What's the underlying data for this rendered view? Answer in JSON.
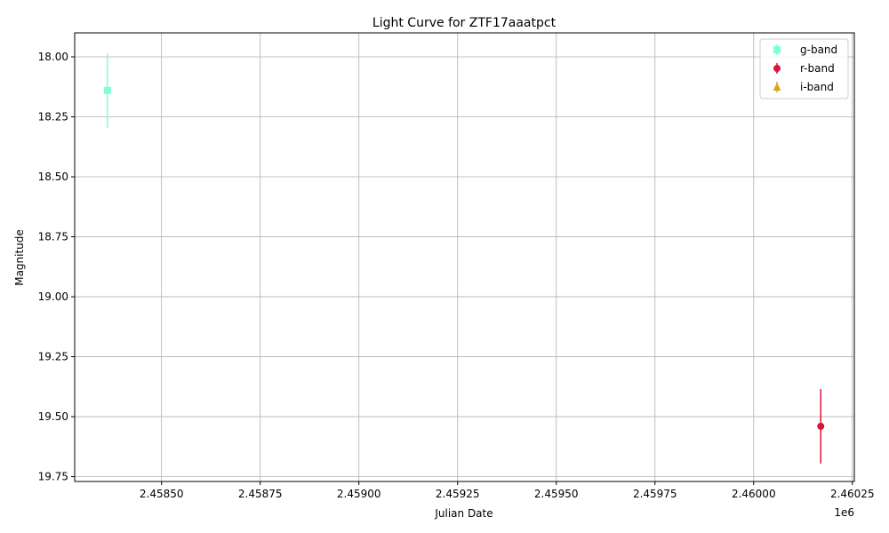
{
  "chart_data": {
    "type": "scatter",
    "title": "Light Curve for ZTF17aaatpct",
    "xlabel": "Julian Date",
    "ylabel": "Magnitude",
    "x_offset_label": "1e6",
    "xlim": [
      2458280,
      2460255
    ],
    "ylim": [
      19.77,
      17.9
    ],
    "y_inverted": true,
    "x_ticks": [
      2458500,
      2458750,
      2459000,
      2459250,
      2459500,
      2459750,
      2460000,
      2460250
    ],
    "x_tick_labels": [
      "2.45850",
      "2.45875",
      "2.45900",
      "2.45925",
      "2.45950",
      "2.45975",
      "2.46000",
      "2.46025"
    ],
    "y_ticks": [
      18.0,
      18.25,
      18.5,
      18.75,
      19.0,
      19.25,
      19.5,
      19.75
    ],
    "y_tick_labels": [
      "18.00",
      "18.25",
      "18.50",
      "18.75",
      "19.00",
      "19.25",
      "19.50",
      "19.75"
    ],
    "grid": true,
    "legend_position": "top-right",
    "series": [
      {
        "name": "g-band",
        "marker": "square",
        "color": "#7fffd4",
        "points": [
          {
            "x": 2458363,
            "y": 18.14,
            "err": 0.155
          }
        ]
      },
      {
        "name": "r-band",
        "marker": "circle",
        "color": "#dc143c",
        "points": [
          {
            "x": 2460170,
            "y": 19.54,
            "err": 0.155
          }
        ]
      },
      {
        "name": "i-band",
        "marker": "triangle",
        "color": "#daa520",
        "points": []
      }
    ]
  }
}
